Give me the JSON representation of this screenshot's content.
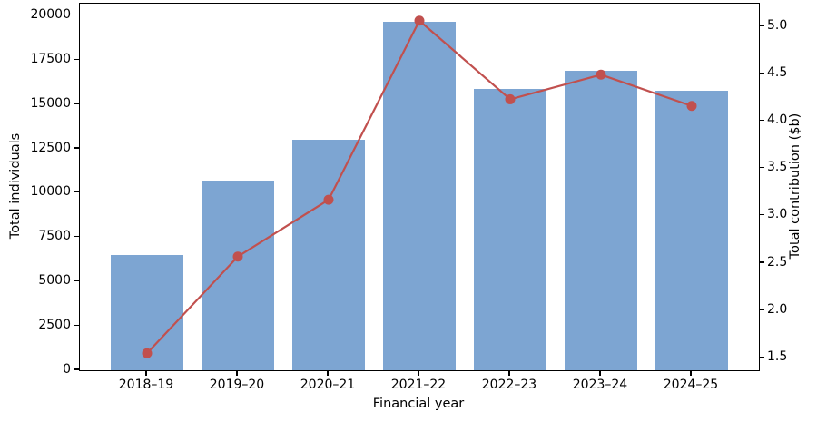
{
  "chart_data": {
    "type": "bar",
    "combo": "bar+line dual axis",
    "title": "",
    "categories": [
      "2018–19",
      "2019–20",
      "2020–21",
      "2021–22",
      "2022–23",
      "2023–24",
      "2024–25"
    ],
    "series": [
      {
        "name": "Total individuals",
        "type": "bar",
        "axis": "left",
        "color": "#7da5d2",
        "values": [
          6500,
          10700,
          13000,
          19700,
          15900,
          16900,
          15800
        ]
      },
      {
        "name": "Total contribution ($b)",
        "type": "line",
        "axis": "right",
        "color": "#c1504e",
        "marker": "circle",
        "values": [
          1.55,
          2.57,
          3.17,
          5.06,
          4.23,
          4.49,
          4.16
        ]
      }
    ],
    "xlabel": "Financial year",
    "ylabel_left": "Total individuals",
    "ylabel_right": "Total contribution ($b)",
    "yticks_left": [
      0,
      2500,
      5000,
      7500,
      10000,
      12500,
      15000,
      17500,
      20000
    ],
    "yticks_right": [
      1.5,
      2.0,
      2.5,
      3.0,
      3.5,
      4.0,
      4.5,
      5.0
    ],
    "ylim_left": [
      0,
      20700
    ],
    "ylim_right": [
      1.37,
      5.24
    ],
    "xlim": [
      -0.74,
      6.74
    ],
    "bar_width_units": 0.8,
    "grid": false,
    "legend": "none",
    "background": "#ffffff",
    "spine_color": "#000000"
  }
}
